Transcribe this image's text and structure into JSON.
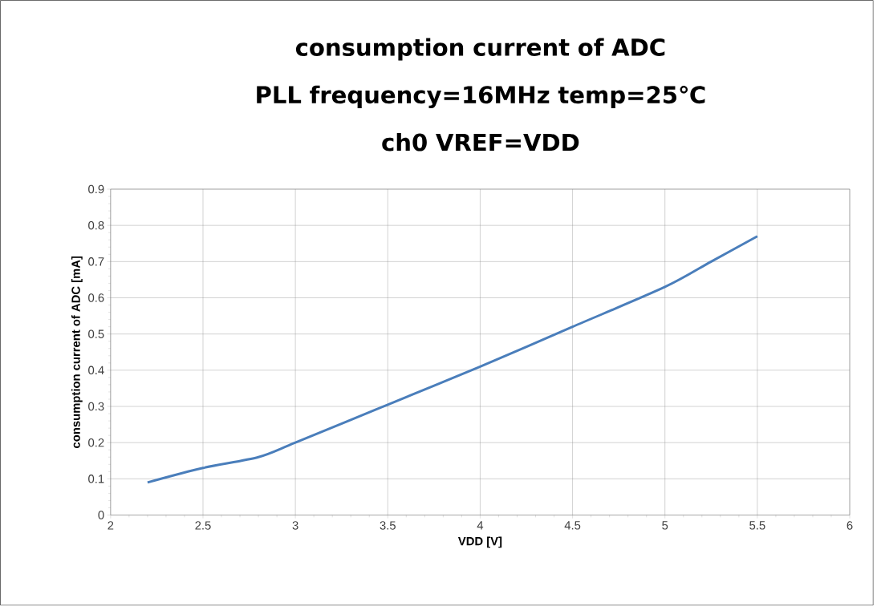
{
  "chart_data": {
    "type": "line",
    "title": "consumption current of ADC\nPLL frequency=16MHz temp=25℃\nch0 VREF=VDD",
    "xlabel": "VDD [V]",
    "ylabel": "consumption current of ADC [mA]",
    "x": [
      2.2,
      2.5,
      2.8,
      3.0,
      3.5,
      4.0,
      4.5,
      5.0,
      5.25,
      5.5
    ],
    "series": [
      {
        "color": "#4a7ebb",
        "values": [
          0.09,
          0.13,
          0.16,
          0.2,
          0.305,
          0.41,
          0.52,
          0.63,
          0.7,
          0.77
        ]
      }
    ],
    "xlim": [
      2,
      6
    ],
    "ylim": [
      0,
      0.9
    ],
    "xticks": [
      2,
      2.5,
      3,
      3.5,
      4,
      4.5,
      5,
      5.5,
      6
    ],
    "yticks": [
      0,
      0.1,
      0.2,
      0.3,
      0.4,
      0.5,
      0.6,
      0.7,
      0.8,
      0.9
    ],
    "grid": true,
    "marker": "none",
    "line_style": "solid"
  }
}
